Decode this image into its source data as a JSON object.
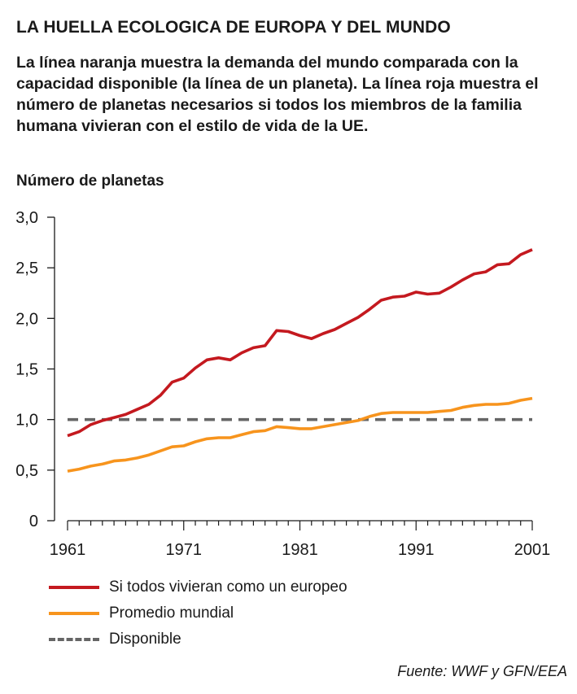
{
  "title": "LA HUELLA ECOLOGICA DE EUROPA Y DEL MUNDO",
  "subtitle": "La línea naranja muestra la demanda del mundo comparada con la capacidad disponible (la línea de un planeta). La línea roja muestra el número de planetas necesarios si todos los miembros de la familia humana vivieran con el estilo de vida de la UE.",
  "source": "Fuente: WWF y GFN/EEA",
  "colors": {
    "europe": "#c4191f",
    "world": "#f7941d",
    "available": "#666666",
    "axis": "#1a1a1a"
  },
  "chart_data": {
    "type": "line",
    "title": "",
    "ylabel": "Número de planetas",
    "xlabel": "",
    "xlim": [
      1961,
      2001
    ],
    "ylim": [
      0,
      3
    ],
    "yticks": [
      0,
      0.5,
      1.0,
      1.5,
      2.0,
      2.5,
      3.0
    ],
    "ytick_labels": [
      "0",
      "0,5",
      "1,0",
      "1,5",
      "2,0",
      "2,5",
      "3,0"
    ],
    "xticks": [
      1961,
      1971,
      1981,
      1991,
      2001
    ],
    "xtick_labels": [
      "1961",
      "1971",
      "1981",
      "1991",
      "2001"
    ],
    "x": [
      1961,
      1962,
      1963,
      1964,
      1965,
      1966,
      1967,
      1968,
      1969,
      1970,
      1971,
      1972,
      1973,
      1974,
      1975,
      1976,
      1977,
      1978,
      1979,
      1980,
      1981,
      1982,
      1983,
      1984,
      1985,
      1986,
      1987,
      1988,
      1989,
      1990,
      1991,
      1992,
      1993,
      1994,
      1995,
      1996,
      1997,
      1998,
      1999,
      2000,
      2001
    ],
    "series": [
      {
        "name": "Si todos vivieran como un europeo",
        "key": "europe",
        "style": "solid",
        "values": [
          0.84,
          0.88,
          0.95,
          0.99,
          1.02,
          1.05,
          1.1,
          1.15,
          1.24,
          1.37,
          1.41,
          1.51,
          1.59,
          1.61,
          1.59,
          1.66,
          1.71,
          1.73,
          1.88,
          1.87,
          1.83,
          1.8,
          1.85,
          1.89,
          1.95,
          2.01,
          2.09,
          2.18,
          2.21,
          2.22,
          2.26,
          2.24,
          2.25,
          2.31,
          2.38,
          2.44,
          2.46,
          2.53,
          2.54,
          2.63,
          2.68
        ]
      },
      {
        "name": "Promedio mundial",
        "key": "world",
        "style": "solid",
        "values": [
          0.49,
          0.51,
          0.54,
          0.56,
          0.59,
          0.6,
          0.62,
          0.65,
          0.69,
          0.73,
          0.74,
          0.78,
          0.81,
          0.82,
          0.82,
          0.85,
          0.88,
          0.89,
          0.93,
          0.92,
          0.91,
          0.91,
          0.93,
          0.95,
          0.97,
          0.99,
          1.03,
          1.06,
          1.07,
          1.07,
          1.07,
          1.07,
          1.08,
          1.09,
          1.12,
          1.14,
          1.15,
          1.15,
          1.16,
          1.19,
          1.21
        ]
      },
      {
        "name": "Disponible",
        "key": "available",
        "style": "dashed",
        "values": [
          1.0,
          1.0,
          1.0,
          1.0,
          1.0,
          1.0,
          1.0,
          1.0,
          1.0,
          1.0,
          1.0,
          1.0,
          1.0,
          1.0,
          1.0,
          1.0,
          1.0,
          1.0,
          1.0,
          1.0,
          1.0,
          1.0,
          1.0,
          1.0,
          1.0,
          1.0,
          1.0,
          1.0,
          1.0,
          1.0,
          1.0,
          1.0,
          1.0,
          1.0,
          1.0,
          1.0,
          1.0,
          1.0,
          1.0,
          1.0,
          1.0
        ]
      }
    ]
  }
}
